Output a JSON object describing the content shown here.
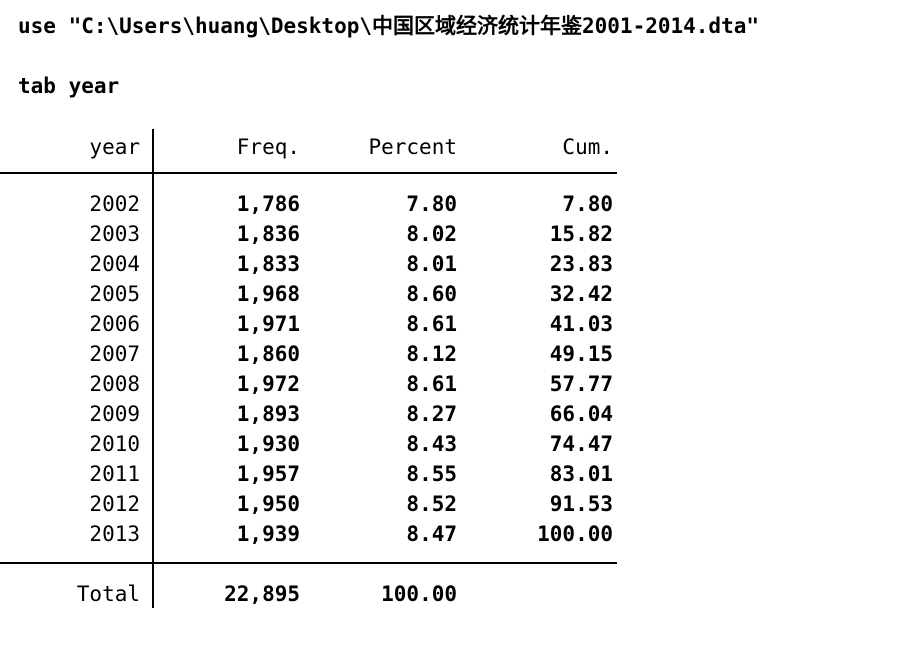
{
  "commands": {
    "use_command": "use \"C:\\Users\\huang\\Desktop\\中国区域经济统计年鉴2001-2014.dta\"",
    "tab_command": "tab year"
  },
  "table": {
    "headers": {
      "var": "year",
      "freq": "Freq.",
      "percent": "Percent",
      "cum": "Cum."
    },
    "rows": [
      {
        "year": "2002",
        "freq": "1,786",
        "percent": "7.80",
        "cum": "7.80"
      },
      {
        "year": "2003",
        "freq": "1,836",
        "percent": "8.02",
        "cum": "15.82"
      },
      {
        "year": "2004",
        "freq": "1,833",
        "percent": "8.01",
        "cum": "23.83"
      },
      {
        "year": "2005",
        "freq": "1,968",
        "percent": "8.60",
        "cum": "32.42"
      },
      {
        "year": "2006",
        "freq": "1,971",
        "percent": "8.61",
        "cum": "41.03"
      },
      {
        "year": "2007",
        "freq": "1,860",
        "percent": "8.12",
        "cum": "49.15"
      },
      {
        "year": "2008",
        "freq": "1,972",
        "percent": "8.61",
        "cum": "57.77"
      },
      {
        "year": "2009",
        "freq": "1,893",
        "percent": "8.27",
        "cum": "66.04"
      },
      {
        "year": "2010",
        "freq": "1,930",
        "percent": "8.43",
        "cum": "74.47"
      },
      {
        "year": "2011",
        "freq": "1,957",
        "percent": "8.55",
        "cum": "83.01"
      },
      {
        "year": "2012",
        "freq": "1,950",
        "percent": "8.52",
        "cum": "91.53"
      },
      {
        "year": "2013",
        "freq": "1,939",
        "percent": "8.47",
        "cum": "100.00"
      }
    ],
    "total": {
      "label": "Total",
      "freq": "22,895",
      "percent": "100.00",
      "cum": ""
    }
  },
  "colors": {
    "background": "#ffffff",
    "text": "#000000",
    "rule_line": "#000000"
  }
}
